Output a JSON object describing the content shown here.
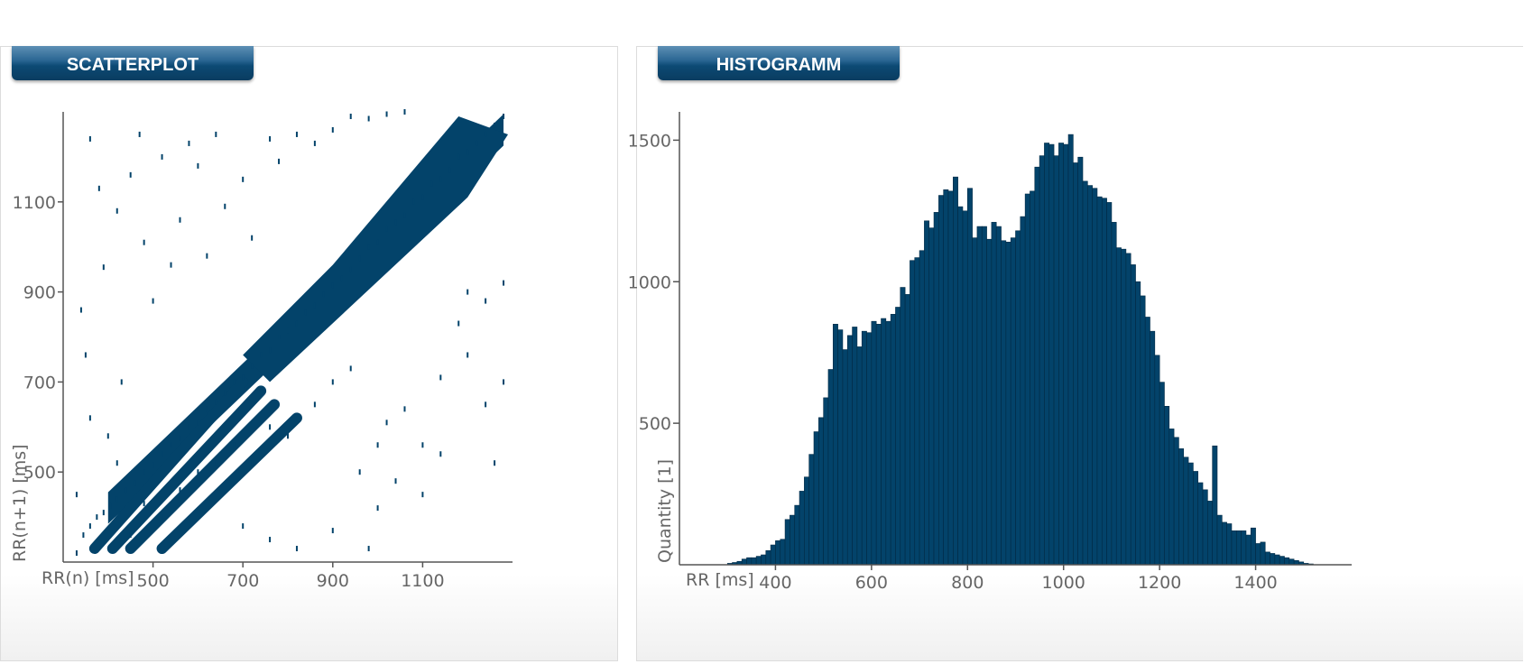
{
  "scatter_panel": {
    "title": "SCATTERPLOT"
  },
  "histogram_panel": {
    "title": "HISTOGRAMM"
  },
  "colors": {
    "data": "#03436a",
    "axis": "#555555",
    "label": "#666666",
    "tab": "#0c4a74"
  },
  "chart_data": [
    {
      "type": "scatter",
      "title": "",
      "xlabel": "RR(n) [ms]",
      "ylabel": "RR(n+1) [ms]",
      "xlim": [
        300,
        1300
      ],
      "ylim": [
        300,
        1300
      ],
      "xticks": [
        500,
        700,
        900,
        1100
      ],
      "yticks": [
        500,
        700,
        900,
        1100
      ],
      "grid": false,
      "legend": "none",
      "description_of_points": "Poincare plot of successive RR intervals; dense cloud along identity line roughly 400-1300 ms with parallel diagonal streaks below 700 ms",
      "main_band": {
        "from": [
          400,
          420
        ],
        "to": [
          1280,
          1260
        ],
        "width_ms": 70
      },
      "parallel_streaks": [
        {
          "from": [
            370,
            330
          ],
          "to": [
            700,
            700
          ]
        },
        {
          "from": [
            410,
            330
          ],
          "to": [
            740,
            680
          ]
        },
        {
          "from": [
            450,
            330
          ],
          "to": [
            770,
            650
          ]
        },
        {
          "from": [
            520,
            330
          ],
          "to": [
            820,
            620
          ]
        }
      ],
      "points": [
        [
          330,
          320
        ],
        [
          345,
          360
        ],
        [
          360,
          380
        ],
        [
          375,
          400
        ],
        [
          390,
          410
        ],
        [
          405,
          425
        ],
        [
          420,
          440
        ],
        [
          440,
          460
        ],
        [
          460,
          475
        ],
        [
          480,
          500
        ],
        [
          500,
          515
        ],
        [
          520,
          540
        ],
        [
          540,
          560
        ],
        [
          560,
          575
        ],
        [
          580,
          600
        ],
        [
          600,
          610
        ],
        [
          620,
          640
        ],
        [
          640,
          655
        ],
        [
          660,
          675
        ],
        [
          680,
          700
        ],
        [
          700,
          710
        ],
        [
          720,
          735
        ],
        [
          740,
          760
        ],
        [
          760,
          770
        ],
        [
          780,
          800
        ],
        [
          800,
          815
        ],
        [
          820,
          830
        ],
        [
          840,
          855
        ],
        [
          860,
          870
        ],
        [
          880,
          895
        ],
        [
          900,
          915
        ],
        [
          920,
          930
        ],
        [
          940,
          950
        ],
        [
          960,
          975
        ],
        [
          980,
          1000
        ],
        [
          1000,
          1010
        ],
        [
          1020,
          1040
        ],
        [
          1040,
          1055
        ],
        [
          1060,
          1070
        ],
        [
          1080,
          1100
        ],
        [
          1100,
          1110
        ],
        [
          1120,
          1140
        ],
        [
          1140,
          1150
        ],
        [
          1160,
          1170
        ],
        [
          1180,
          1200
        ],
        [
          1200,
          1210
        ],
        [
          1220,
          1230
        ],
        [
          1240,
          1250
        ],
        [
          1260,
          1270
        ],
        [
          1280,
          1290
        ],
        [
          340,
          860
        ],
        [
          350,
          760
        ],
        [
          360,
          1240
        ],
        [
          380,
          1130
        ],
        [
          390,
          955
        ],
        [
          420,
          1080
        ],
        [
          430,
          700
        ],
        [
          450,
          1160
        ],
        [
          470,
          1250
        ],
        [
          480,
          1010
        ],
        [
          500,
          880
        ],
        [
          520,
          1200
        ],
        [
          540,
          960
        ],
        [
          560,
          1060
        ],
        [
          580,
          1230
        ],
        [
          600,
          1180
        ],
        [
          620,
          980
        ],
        [
          640,
          1250
        ],
        [
          660,
          1090
        ],
        [
          700,
          1150
        ],
        [
          720,
          1020
        ],
        [
          760,
          1240
        ],
        [
          780,
          1190
        ],
        [
          820,
          1250
        ],
        [
          860,
          1230
        ],
        [
          900,
          1260
        ],
        [
          940,
          1290
        ],
        [
          980,
          1285
        ],
        [
          1020,
          1295
        ],
        [
          1060,
          1300
        ],
        [
          330,
          450
        ],
        [
          360,
          620
        ],
        [
          400,
          580
        ],
        [
          420,
          520
        ],
        [
          450,
          360
        ],
        [
          480,
          430
        ],
        [
          520,
          400
        ],
        [
          560,
          460
        ],
        [
          600,
          500
        ],
        [
          640,
          520
        ],
        [
          680,
          560
        ],
        [
          720,
          520
        ],
        [
          760,
          600
        ],
        [
          800,
          580
        ],
        [
          860,
          650
        ],
        [
          900,
          700
        ],
        [
          940,
          730
        ],
        [
          960,
          500
        ],
        [
          1000,
          560
        ],
        [
          1020,
          610
        ],
        [
          1060,
          640
        ],
        [
          1100,
          560
        ],
        [
          1140,
          710
        ],
        [
          1180,
          830
        ],
        [
          1200,
          760
        ],
        [
          1240,
          650
        ],
        [
          1260,
          520
        ],
        [
          1280,
          700
        ],
        [
          1100,
          450
        ],
        [
          1000,
          420
        ],
        [
          700,
          380
        ],
        [
          760,
          350
        ],
        [
          820,
          330
        ],
        [
          900,
          370
        ],
        [
          980,
          330
        ],
        [
          1040,
          480
        ],
        [
          1140,
          540
        ],
        [
          1200,
          900
        ],
        [
          1240,
          880
        ],
        [
          1280,
          920
        ]
      ]
    },
    {
      "type": "bar",
      "title": "",
      "xlabel": "RR [ms]",
      "ylabel": "Quantity [1]",
      "xlim": [
        200,
        1600
      ],
      "ylim": [
        0,
        1600
      ],
      "xticks": [
        400,
        600,
        800,
        1000,
        1200,
        1400
      ],
      "yticks": [
        500,
        1000,
        1500
      ],
      "grid": false,
      "legend": "none",
      "bin_width": 10,
      "x": [
        300,
        310,
        320,
        330,
        340,
        350,
        360,
        370,
        380,
        390,
        400,
        410,
        420,
        430,
        440,
        450,
        460,
        470,
        480,
        490,
        500,
        510,
        520,
        530,
        540,
        550,
        560,
        570,
        580,
        590,
        600,
        610,
        620,
        630,
        640,
        650,
        660,
        670,
        680,
        690,
        700,
        710,
        720,
        730,
        740,
        750,
        760,
        770,
        780,
        790,
        800,
        810,
        820,
        830,
        840,
        850,
        860,
        870,
        880,
        890,
        900,
        910,
        920,
        930,
        940,
        950,
        960,
        970,
        980,
        990,
        1000,
        1010,
        1020,
        1030,
        1040,
        1050,
        1060,
        1070,
        1080,
        1090,
        1100,
        1110,
        1120,
        1130,
        1140,
        1150,
        1160,
        1170,
        1180,
        1190,
        1200,
        1210,
        1220,
        1230,
        1240,
        1250,
        1260,
        1270,
        1280,
        1290,
        1300,
        1310,
        1320,
        1330,
        1340,
        1350,
        1360,
        1370,
        1380,
        1390,
        1400,
        1410,
        1420,
        1430,
        1440,
        1450,
        1460,
        1470,
        1480,
        1490,
        1500,
        1510
      ],
      "values": [
        5,
        8,
        12,
        20,
        25,
        25,
        30,
        35,
        50,
        70,
        85,
        90,
        160,
        175,
        210,
        260,
        310,
        390,
        470,
        520,
        590,
        690,
        850,
        830,
        760,
        810,
        840,
        770,
        825,
        820,
        860,
        850,
        870,
        860,
        885,
        910,
        980,
        955,
        1075,
        1085,
        1110,
        1215,
        1190,
        1245,
        1305,
        1325,
        1320,
        1370,
        1265,
        1250,
        1330,
        1155,
        1195,
        1195,
        1150,
        1210,
        1195,
        1145,
        1140,
        1155,
        1180,
        1230,
        1310,
        1320,
        1405,
        1445,
        1490,
        1485,
        1445,
        1490,
        1485,
        1520,
        1420,
        1440,
        1355,
        1340,
        1330,
        1300,
        1295,
        1280,
        1210,
        1120,
        1115,
        1100,
        1060,
        1000,
        950,
        875,
        825,
        740,
        645,
        560,
        480,
        450,
        410,
        380,
        360,
        330,
        290,
        265,
        225,
        420,
        175,
        150,
        145,
        120,
        120,
        120,
        105,
        130,
        75,
        80,
        45,
        40,
        35,
        30,
        25,
        20,
        15,
        10,
        5,
        3
      ]
    }
  ]
}
